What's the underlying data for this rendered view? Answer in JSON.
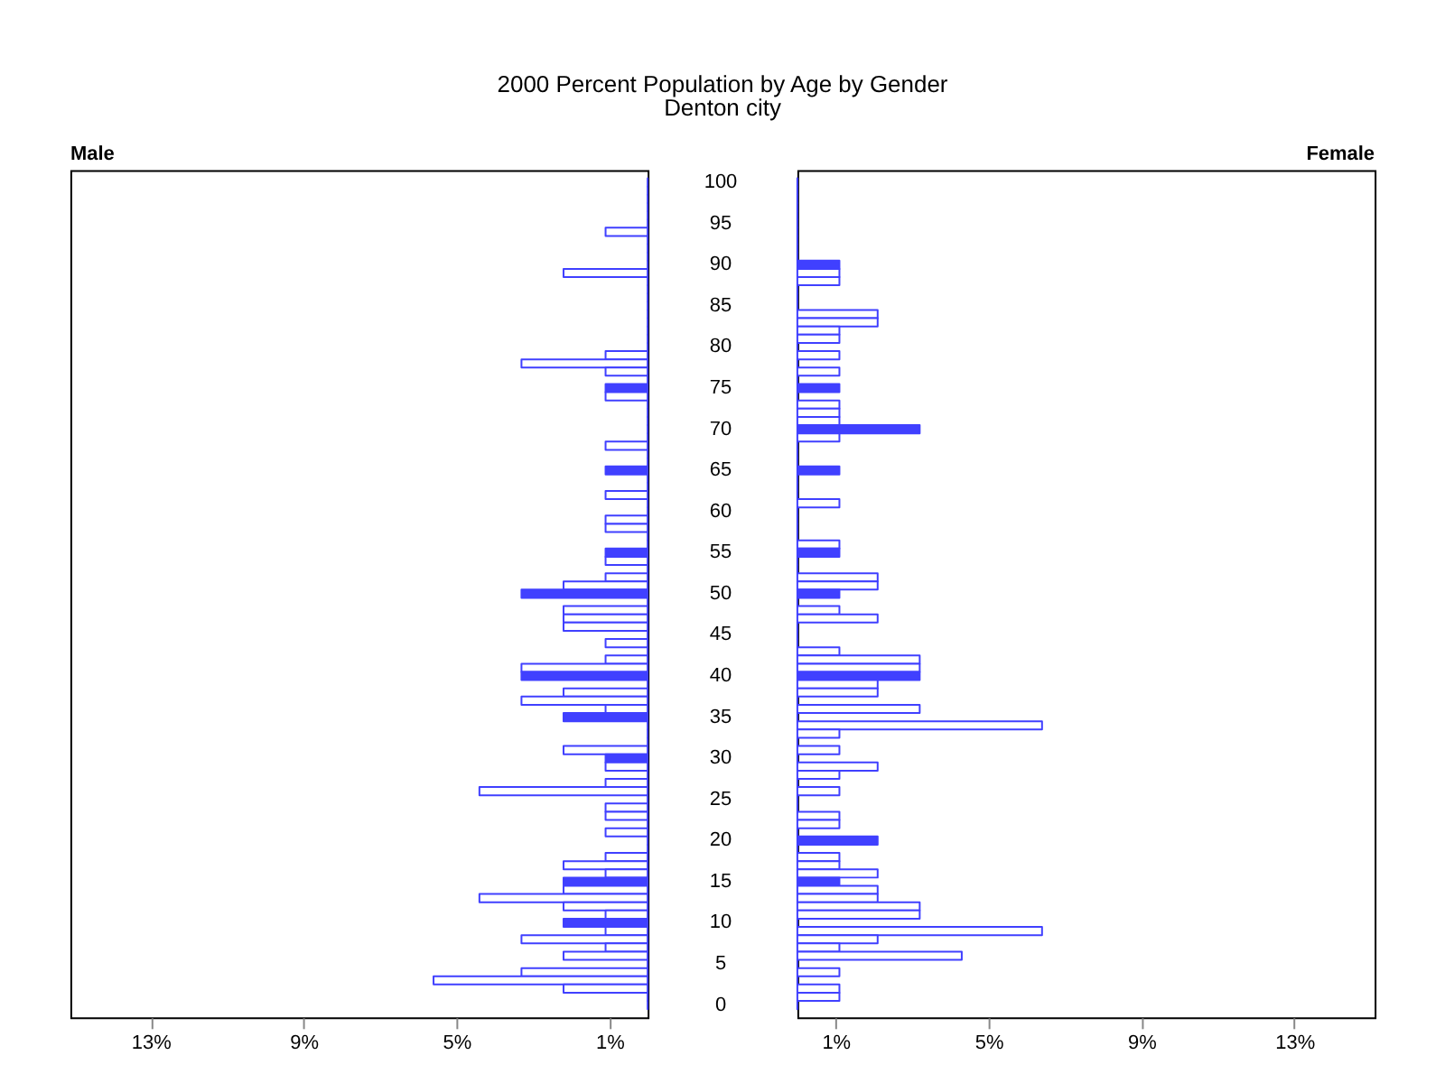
{
  "chart_data": [
    {
      "type": "bar",
      "orientation": "horizontal",
      "title": "2000 Percent Population by Age by Gender",
      "subtitle": "Denton city",
      "categories": [
        "100",
        null,
        null,
        null,
        null,
        "95",
        null,
        null,
        null,
        null,
        "90",
        null,
        null,
        null,
        null,
        "85",
        null,
        null,
        null,
        null,
        "80",
        null,
        null,
        null,
        null,
        "75",
        null,
        null,
        null,
        null,
        "70",
        null,
        null,
        null,
        null,
        "65",
        null,
        null,
        null,
        null,
        "60",
        null,
        null,
        null,
        null,
        "55",
        null,
        null,
        null,
        null,
        "50",
        null,
        null,
        null,
        null,
        "45",
        null,
        null,
        null,
        null,
        "40",
        null,
        null,
        null,
        null,
        "35",
        null,
        null,
        null,
        null,
        "30",
        null,
        null,
        null,
        null,
        "25",
        null,
        null,
        null,
        null,
        "20",
        null,
        null,
        null,
        null,
        "15",
        null,
        null,
        null,
        null,
        "10",
        null,
        null,
        null,
        null,
        "5",
        null,
        null,
        null,
        null,
        "0"
      ],
      "series": [
        {
          "name": "Male",
          "color": "#4040ff",
          "values": [
            0,
            0,
            0,
            0,
            0,
            0,
            1.1,
            0,
            0,
            0,
            0,
            2.2,
            0,
            0,
            0,
            0,
            0,
            0,
            0,
            0,
            0,
            1.1,
            3.3,
            1.1,
            0,
            1.1,
            1.1,
            0,
            0,
            0,
            0,
            0,
            1.1,
            0,
            0,
            1.1,
            0,
            0,
            1.1,
            0,
            0,
            1.1,
            1.1,
            0,
            0,
            1.1,
            1.1,
            0,
            1.1,
            2.2,
            3.3,
            0,
            2.2,
            2.2,
            2.2,
            0,
            1.1,
            0,
            1.1,
            3.3,
            3.3,
            0,
            2.2,
            3.3,
            1.1,
            2.2,
            0,
            0,
            0,
            2.2,
            1.1,
            1.1,
            0,
            1.1,
            4.4,
            0,
            1.1,
            1.1,
            0,
            1.1,
            0,
            0,
            1.1,
            2.2,
            1.1,
            2.2,
            2.2,
            4.4,
            2.2,
            1.1,
            2.2,
            1.1,
            3.3,
            1.1,
            2.2,
            0,
            3.3,
            5.6,
            2.2,
            0,
            0
          ]
        }
      ],
      "xlim": [
        15.1,
        0
      ],
      "xticks": [
        {
          "value": 13,
          "label": "13%"
        },
        {
          "value": 9,
          "label": "9%"
        },
        {
          "value": 5,
          "label": "5%"
        },
        {
          "value": 1,
          "label": "1%"
        }
      ],
      "grid": false
    },
    {
      "type": "bar",
      "orientation": "horizontal",
      "categories": [
        "100",
        null,
        null,
        null,
        null,
        "95",
        null,
        null,
        null,
        null,
        "90",
        null,
        null,
        null,
        null,
        "85",
        null,
        null,
        null,
        null,
        "80",
        null,
        null,
        null,
        null,
        "75",
        null,
        null,
        null,
        null,
        "70",
        null,
        null,
        null,
        null,
        "65",
        null,
        null,
        null,
        null,
        "60",
        null,
        null,
        null,
        null,
        "55",
        null,
        null,
        null,
        null,
        "50",
        null,
        null,
        null,
        null,
        "45",
        null,
        null,
        null,
        null,
        "40",
        null,
        null,
        null,
        null,
        "35",
        null,
        null,
        null,
        null,
        "30",
        null,
        null,
        null,
        null,
        "25",
        null,
        null,
        null,
        null,
        "20",
        null,
        null,
        null,
        null,
        "15",
        null,
        null,
        null,
        null,
        "10",
        null,
        null,
        null,
        null,
        "5",
        null,
        null,
        null,
        null,
        "0"
      ],
      "series": [
        {
          "name": "Female",
          "color": "#4040ff",
          "values": [
            0,
            0,
            0,
            0,
            0,
            0,
            0,
            0,
            0,
            0,
            1.1,
            1.1,
            1.1,
            0,
            0,
            0,
            2.1,
            2.1,
            1.1,
            1.1,
            0,
            1.1,
            0,
            1.1,
            0,
            1.1,
            0,
            1.1,
            1.1,
            1.1,
            3.2,
            1.1,
            0,
            0,
            0,
            1.1,
            0,
            0,
            0,
            1.1,
            0,
            0,
            0,
            0,
            1.1,
            1.1,
            0,
            0,
            2.1,
            2.1,
            1.1,
            0,
            1.1,
            2.1,
            0,
            0,
            0,
            1.1,
            3.2,
            3.2,
            3.2,
            2.1,
            2.1,
            0,
            3.2,
            0,
            6.4,
            1.1,
            0,
            1.1,
            0,
            2.1,
            1.1,
            0,
            1.1,
            0,
            0,
            1.1,
            1.1,
            0,
            2.1,
            0,
            1.1,
            1.1,
            2.1,
            1.1,
            2.1,
            2.1,
            3.2,
            3.2,
            0,
            6.4,
            2.1,
            1.1,
            4.3,
            0,
            1.1,
            0,
            1.1,
            1.1,
            0
          ]
        }
      ],
      "xlim": [
        0,
        15.1
      ],
      "xticks": [
        {
          "value": 1,
          "label": "1%"
        },
        {
          "value": 5,
          "label": "5%"
        },
        {
          "value": 9,
          "label": "9%"
        },
        {
          "value": 13,
          "label": "13%"
        }
      ],
      "tick_labels": "x",
      "grid": false
    }
  ]
}
